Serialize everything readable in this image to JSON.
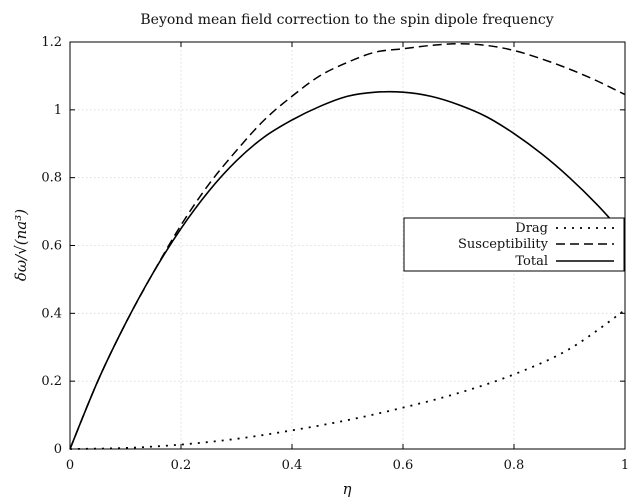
{
  "chart_data": {
    "type": "line",
    "title": "Beyond mean field correction to the spin dipole frequency",
    "xlabel": "η",
    "ylabel": "δω/√(na³)",
    "xlim": [
      0,
      1
    ],
    "ylim": [
      0,
      1.2
    ],
    "x_ticks": [
      "0",
      "0.2",
      "0.4",
      "0.6",
      "0.8",
      "1"
    ],
    "y_ticks": [
      "0",
      "0.2",
      "0.4",
      "0.6",
      "0.8",
      "1",
      "1.2"
    ],
    "grid": true,
    "legend_position": "right",
    "series": [
      {
        "name": "Drag",
        "style": "dotted",
        "x": [
          0,
          0.1,
          0.2,
          0.3,
          0.4,
          0.5,
          0.6,
          0.7,
          0.8,
          0.9,
          1.0
        ],
        "y": [
          0,
          0.003,
          0.013,
          0.03,
          0.055,
          0.085,
          0.122,
          0.165,
          0.22,
          0.295,
          0.41
        ]
      },
      {
        "name": "Susceptibility",
        "style": "dashed",
        "x": [
          0,
          0.05,
          0.1,
          0.15,
          0.2,
          0.25,
          0.3,
          0.35,
          0.4,
          0.45,
          0.5,
          0.55,
          0.6,
          0.65,
          0.7,
          0.75,
          0.8,
          0.85,
          0.9,
          0.95,
          1.0
        ],
        "y": [
          0,
          0.2,
          0.37,
          0.52,
          0.66,
          0.78,
          0.88,
          0.97,
          1.04,
          1.1,
          1.14,
          1.17,
          1.18,
          1.19,
          1.195,
          1.19,
          1.175,
          1.15,
          1.12,
          1.085,
          1.045
        ]
      },
      {
        "name": "Total",
        "style": "solid",
        "x": [
          0,
          0.05,
          0.1,
          0.15,
          0.2,
          0.25,
          0.3,
          0.35,
          0.4,
          0.45,
          0.5,
          0.55,
          0.6,
          0.65,
          0.7,
          0.75,
          0.8,
          0.85,
          0.9,
          0.95,
          1.0
        ],
        "y": [
          0,
          0.2,
          0.37,
          0.52,
          0.65,
          0.76,
          0.85,
          0.92,
          0.97,
          1.01,
          1.04,
          1.052,
          1.052,
          1.04,
          1.015,
          0.98,
          0.93,
          0.87,
          0.8,
          0.72,
          0.63
        ]
      }
    ]
  }
}
